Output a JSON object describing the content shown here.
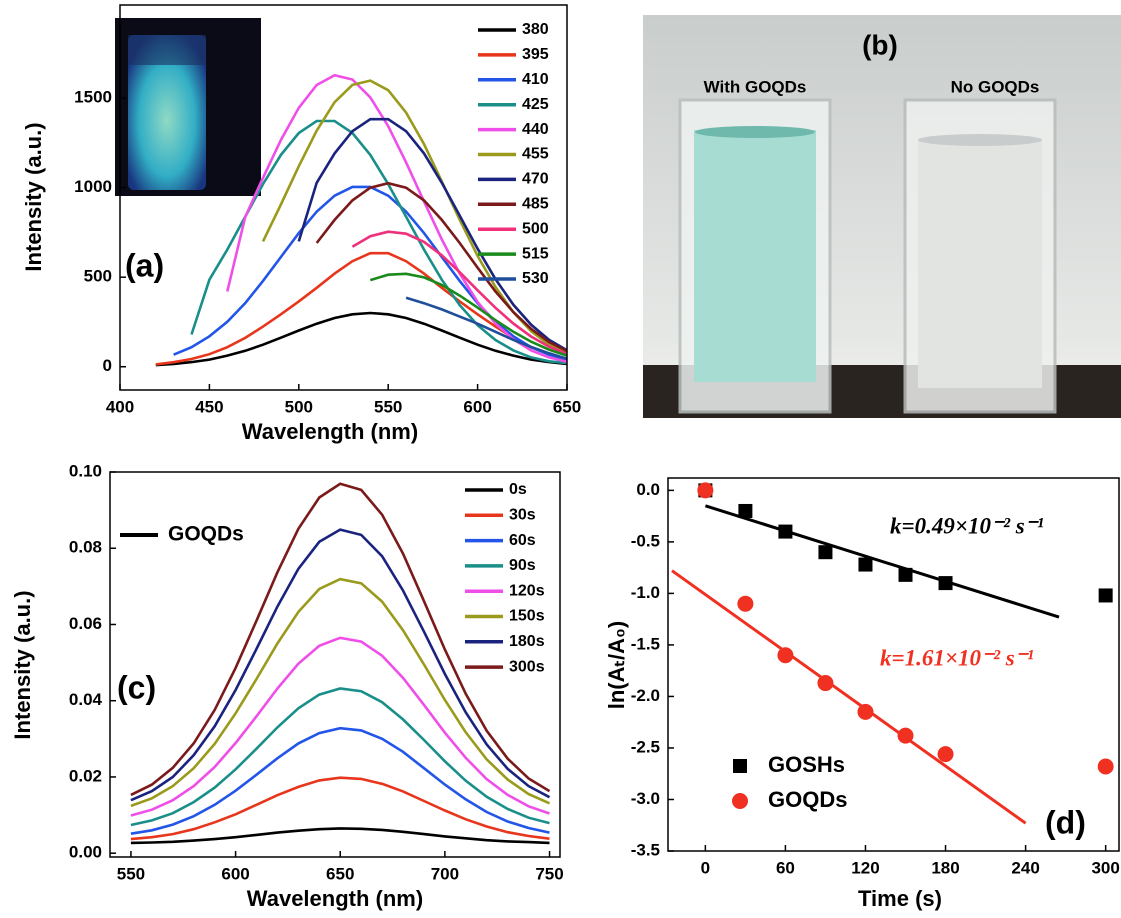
{
  "chart_data": [
    {
      "type": "line",
      "label": "(a)",
      "x_label": "Wavelength (nm)",
      "y_label": "Intensity (a.u.)",
      "x": [
        420,
        430,
        440,
        450,
        460,
        470,
        480,
        490,
        500,
        510,
        520,
        530,
        540,
        550,
        560,
        570,
        580,
        590,
        600,
        610,
        620,
        630,
        640,
        650
      ],
      "series": [
        {
          "name": "380",
          "color": "#000000",
          "values": [
            9,
            15,
            26,
            40,
            62,
            89,
            123,
            162,
            202,
            240,
            272,
            293,
            300,
            293,
            272,
            240,
            202,
            162,
            123,
            89,
            62,
            40,
            26,
            15
          ]
        },
        {
          "name": "395",
          "color": "#e8361c",
          "values": [
            13,
            25,
            43,
            70,
            109,
            161,
            224,
            293,
            365,
            441,
            520,
            589,
            634,
            634,
            589,
            520,
            441,
            365,
            293,
            224,
            161,
            109,
            70,
            43
          ]
        },
        {
          "name": "410",
          "color": "#2255e8",
          "values": [
            null,
            67,
            109,
            170,
            251,
            355,
            479,
            613,
            746,
            866,
            955,
            1004,
            1004,
            955,
            866,
            746,
            613,
            479,
            355,
            251,
            170,
            109,
            67,
            40
          ]
        },
        {
          "name": "425",
          "color": "#1a8f8a",
          "values": [
            null,
            null,
            180,
            486,
            654,
            838,
            1020,
            1183,
            1305,
            1372,
            1372,
            1305,
            1183,
            1020,
            838,
            654,
            486,
            344,
            232,
            149,
            91,
            52,
            30,
            20
          ]
        },
        {
          "name": "440",
          "color": "#f04ee8",
          "values": [
            null,
            null,
            null,
            null,
            420,
            836,
            1055,
            1266,
            1446,
            1573,
            1628,
            1604,
            1504,
            1343,
            1141,
            923,
            711,
            520,
            362,
            241,
            153,
            91,
            52,
            28
          ]
        },
        {
          "name": "455",
          "color": "#9a9a1c",
          "values": [
            null,
            null,
            null,
            null,
            null,
            null,
            700,
            906,
            1120,
            1318,
            1477,
            1574,
            1598,
            1544,
            1419,
            1243,
            1035,
            821,
            619,
            445,
            304,
            198,
            123,
            74
          ]
        },
        {
          "name": "470",
          "color": "#1a237e",
          "values": [
            null,
            null,
            null,
            null,
            null,
            null,
            null,
            null,
            700,
            1027,
            1191,
            1315,
            1382,
            1382,
            1315,
            1191,
            1027,
            844,
            659,
            489,
            346,
            234,
            150,
            92
          ]
        },
        {
          "name": "485",
          "color": "#7b1a1a",
          "values": [
            null,
            null,
            null,
            null,
            null,
            null,
            null,
            null,
            null,
            691,
            820,
            929,
            1000,
            1025,
            1000,
            929,
            820,
            691,
            553,
            420,
            305,
            211,
            138,
            87
          ]
        },
        {
          "name": "500",
          "color": "#f0307a",
          "values": [
            null,
            null,
            null,
            null,
            null,
            null,
            null,
            null,
            null,
            null,
            null,
            670,
            729,
            754,
            743,
            697,
            622,
            528,
            427,
            329,
            241,
            168,
            112,
            71
          ]
        },
        {
          "name": "515",
          "color": "#1a8a1a",
          "values": [
            null,
            null,
            null,
            null,
            null,
            null,
            null,
            null,
            null,
            null,
            null,
            null,
            484,
            514,
            519,
            499,
            457,
            397,
            330,
            260,
            195,
            140,
            95,
            62
          ]
        },
        {
          "name": "530",
          "color": "#1f4e9a",
          "values": [
            null,
            null,
            null,
            null,
            null,
            null,
            null,
            null,
            null,
            null,
            null,
            null,
            null,
            null,
            385,
            355,
            320,
            280,
            240,
            195,
            150,
            110,
            75,
            45
          ]
        }
      ],
      "xlim": [
        400,
        650
      ],
      "xticks": [
        400,
        450,
        500,
        550,
        600,
        650
      ],
      "ylim": [
        -130,
        2020
      ],
      "yticks": [
        0,
        500,
        1000,
        1500
      ],
      "legend": "upper right"
    },
    {
      "type": "line",
      "label": "(c)",
      "x_label": "Wavelength (nm)",
      "y_label": "Intensity (a.u.)",
      "annotations": [
        {
          "text": "GOQDs",
          "color": "#000000"
        }
      ],
      "x": [
        550,
        560,
        570,
        580,
        590,
        600,
        610,
        620,
        630,
        640,
        650,
        660,
        670,
        680,
        690,
        700,
        710,
        720,
        730,
        740,
        750
      ],
      "series": [
        {
          "name": "0s",
          "color": "#000000",
          "values": [
            0.0027,
            0.0028,
            0.003,
            0.0033,
            0.0037,
            0.0042,
            0.0048,
            0.0054,
            0.0059,
            0.0063,
            0.0065,
            0.0064,
            0.0061,
            0.0056,
            0.005,
            0.0044,
            0.0039,
            0.0034,
            0.0031,
            0.0029,
            0.0027
          ]
        },
        {
          "name": "30s",
          "color": "#e8361c",
          "values": [
            0.0037,
            0.0042,
            0.005,
            0.0063,
            0.0081,
            0.0102,
            0.0127,
            0.0152,
            0.0174,
            0.0191,
            0.0198,
            0.0195,
            0.0182,
            0.0162,
            0.0137,
            0.0112,
            0.0089,
            0.007,
            0.0055,
            0.0045,
            0.0038
          ]
        },
        {
          "name": "60s",
          "color": "#2255e8",
          "values": [
            0.0051,
            0.006,
            0.0075,
            0.0097,
            0.0127,
            0.0164,
            0.0206,
            0.0249,
            0.0288,
            0.0315,
            0.0328,
            0.0322,
            0.03,
            0.0266,
            0.0223,
            0.018,
            0.0141,
            0.0108,
            0.0083,
            0.0066,
            0.0054
          ]
        },
        {
          "name": "90s",
          "color": "#1a8f8a",
          "values": [
            0.0074,
            0.0086,
            0.0105,
            0.0134,
            0.0172,
            0.022,
            0.0274,
            0.033,
            0.038,
            0.0416,
            0.0432,
            0.0425,
            0.0396,
            0.0351,
            0.0297,
            0.0241,
            0.019,
            0.0148,
            0.0116,
            0.0093,
            0.0079
          ]
        },
        {
          "name": "120s",
          "color": "#f04ee8",
          "values": [
            0.0099,
            0.0114,
            0.0139,
            0.0176,
            0.0226,
            0.0289,
            0.0359,
            0.0432,
            0.0497,
            0.0544,
            0.0565,
            0.0555,
            0.0518,
            0.046,
            0.0389,
            0.0316,
            0.025,
            0.0194,
            0.0153,
            0.0123,
            0.0104
          ]
        },
        {
          "name": "150s",
          "color": "#9a9a1c",
          "values": [
            0.0124,
            0.0144,
            0.0176,
            0.0223,
            0.0287,
            0.0367,
            0.0457,
            0.055,
            0.0633,
            0.0693,
            0.0719,
            0.0708,
            0.066,
            0.0585,
            0.0495,
            0.0402,
            0.0317,
            0.0246,
            0.0193,
            0.0155,
            0.0131
          ]
        },
        {
          "name": "180s",
          "color": "#1a237e",
          "values": [
            0.0139,
            0.0163,
            0.02,
            0.0257,
            0.0333,
            0.0428,
            0.0536,
            0.0647,
            0.0746,
            0.0817,
            0.0849,
            0.0835,
            0.0779,
            0.0689,
            0.0581,
            0.047,
            0.0369,
            0.0285,
            0.0221,
            0.0176,
            0.0147
          ]
        },
        {
          "name": "300s",
          "color": "#7b1a1a",
          "values": [
            0.0153,
            0.018,
            0.0224,
            0.0288,
            0.0376,
            0.0486,
            0.061,
            0.0737,
            0.0851,
            0.0933,
            0.0969,
            0.0953,
            0.0888,
            0.0786,
            0.0661,
            0.0534,
            0.0418,
            0.0321,
            0.0248,
            0.0196,
            0.0163
          ]
        }
      ],
      "xlim": [
        540,
        755
      ],
      "xticks": [
        550,
        600,
        650,
        700,
        750
      ],
      "ylim": [
        -0.001,
        0.1
      ],
      "yticks": [
        {
          "value": 0,
          "label": "0.00"
        },
        {
          "value": 0.02,
          "label": "0.02"
        },
        {
          "value": 0.04,
          "label": "0.04"
        },
        {
          "value": 0.06,
          "label": "0.06"
        },
        {
          "value": 0.08,
          "label": "0.08"
        },
        {
          "value": 0.1,
          "label": "0.10"
        }
      ],
      "legend": "upper right"
    },
    {
      "type": "scatter",
      "label": "(d)",
      "x_label": "Time (s)",
      "y_label": "ln(Aₜ/A₀)",
      "annotations": [
        {
          "text": "k=0.49×10⁻² s⁻¹",
          "color": "#000000"
        },
        {
          "text": "k=1.61×10⁻² s⁻¹",
          "color": "#f03020"
        }
      ],
      "x": [
        0,
        30,
        60,
        90,
        120,
        150,
        180,
        300
      ],
      "series": [
        {
          "name": "GOSHs",
          "color": "#000000",
          "marker": "square",
          "values": [
            0,
            -0.2,
            -0.4,
            -0.6,
            -0.72,
            -0.82,
            -0.9,
            -1.02
          ]
        },
        {
          "name": "GOQDs",
          "color": "#f03020",
          "marker": "circle",
          "values": [
            0,
            -1.1,
            -1.6,
            -1.87,
            -2.15,
            -2.38,
            -2.56,
            -2.68
          ]
        }
      ],
      "fits": [
        {
          "color": "#000000",
          "x": [
            0,
            265
          ],
          "values": [
            -0.15,
            -1.23
          ]
        },
        {
          "color": "#f03020",
          "x": [
            -25,
            240
          ],
          "values": [
            -0.78,
            -3.23
          ]
        }
      ],
      "xlim": [
        -28,
        310
      ],
      "xticks": [
        0,
        60,
        120,
        180,
        240,
        300
      ],
      "ylim": [
        -3.5,
        0.12
      ],
      "yticks": [
        {
          "value": 0,
          "label": "0.0"
        },
        -0.5,
        {
          "value": -1,
          "label": "-1.0"
        },
        -1.5,
        {
          "value": -2,
          "label": "-2.0"
        },
        -2.5,
        {
          "value": -3,
          "label": "-3.0"
        },
        -3.5
      ],
      "legend": "lower left"
    }
  ],
  "photo": {
    "label": "(b)",
    "captions": [
      "With GOQDs",
      "No GOQDs"
    ]
  }
}
